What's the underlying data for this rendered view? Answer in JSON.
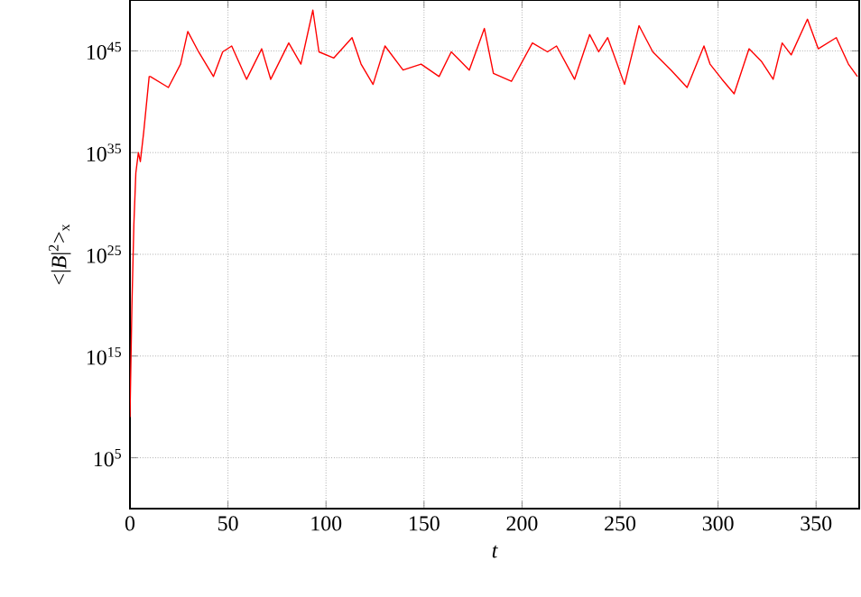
{
  "chart_data": {
    "type": "line",
    "xlabel": "t",
    "ylabel": "<|*B*|$^{2}$>$_{x}$",
    "x": [
      0,
      1,
      2,
      3,
      4.3,
      5.3,
      7,
      9.8,
      10.4,
      19.6,
      25.8,
      29.5,
      35,
      42.6,
      47.3,
      51.9,
      59.5,
      67.2,
      71.8,
      81,
      87.2,
      93.3,
      96.4,
      104,
      113.3,
      117.9,
      124,
      130.1,
      139.3,
      148.5,
      157.7,
      163.9,
      173.1,
      180.8,
      185.4,
      194.6,
      205.3,
      213,
      217.6,
      226.8,
      234.5,
      239.1,
      243.7,
      252.3,
      259.7,
      266.7,
      276,
      284.2,
      292.8,
      295.9,
      302,
      308.2,
      315.8,
      322,
      328.1,
      332.7,
      337.3,
      345.6,
      351.1,
      360.3,
      366.5,
      371.1
    ],
    "series": [
      {
        "color": "#ff0000",
        "values": [
          1000000000.0,
          1e+20,
          1e+28,
          1e+33,
          1e+35,
          1.3e+34,
          1e+37,
          3e+42,
          3e+42,
          2.5e+41,
          5e+43,
          8e+46,
          8e+44,
          3e+42,
          8e+44,
          3e+45,
          1.6e+42,
          1.6e+45,
          1.6e+42,
          6e+45,
          5e+43,
          1e+49,
          8e+44,
          2e+44,
          2e+46,
          5e+43,
          5e+41,
          3e+45,
          1.3e+43,
          5e+43,
          3e+42,
          8e+44,
          1.3e+43,
          1.6e+47,
          6e+42,
          1e+42,
          6e+45,
          8e+44,
          3e+45,
          1.6e+42,
          4e+46,
          8e+44,
          2e+46,
          5e+41,
          3e+47,
          8e+44,
          1.3e+43,
          2.5e+41,
          3e+45,
          5e+43,
          1.6e+42,
          6e+40,
          1.6e+45,
          1e+44,
          1.6e+42,
          6e+45,
          4e+44,
          1.3e+48,
          1.6e+45,
          2e+46,
          5e+43,
          3e+42
        ]
      }
    ],
    "log": "y",
    "xlim": [
      0,
      372
    ],
    "ylim": [
      1,
      1e+50
    ],
    "xticks": [
      0,
      50,
      100,
      150,
      200,
      250,
      300,
      350
    ],
    "yticks": [
      {
        "value": 100000.0,
        "label": "10$^{5}$"
      },
      {
        "value": 1000000000000000.0,
        "label": "10$^{15}$"
      },
      {
        "value": 1e+25,
        "label": "10$^{25}$"
      },
      {
        "value": 1e+35,
        "label": "10$^{35}$"
      },
      {
        "value": 1e+45,
        "label": "10$^{45}$"
      }
    ],
    "grid": true,
    "line_style": "solid",
    "marker": "none"
  }
}
